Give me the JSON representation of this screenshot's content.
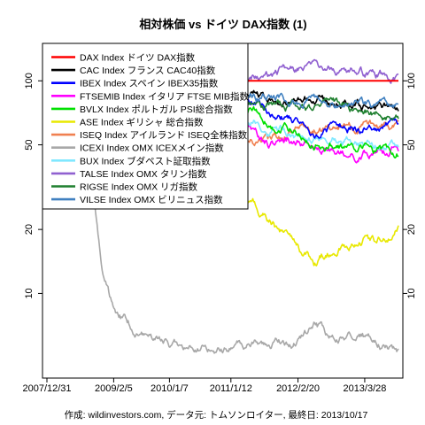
{
  "chart_data": {
    "type": "line",
    "title": "相対株価 vs ドイツ DAX指数 (1)",
    "caption": "作成: wildinvestors.com, データ元: トムソンロイター, 最終日: 2013/10/17",
    "xlabel": "",
    "ylabel": "",
    "y_scale": "log",
    "ylim": [
      4,
      150
    ],
    "y_ticks": [
      10,
      20,
      50,
      100
    ],
    "x_ticks": [
      "2007/12/31",
      "2009/2/5",
      "2010/1/7",
      "2011/1/12",
      "2012/2/20",
      "2013/3/28"
    ],
    "x": [
      "2007/12/31",
      "2008/3/1",
      "2008/6/1",
      "2008/9/1",
      "2008/12/1",
      "2009/2/5",
      "2009/6/1",
      "2009/9/1",
      "2010/1/7",
      "2010/6/1",
      "2011/1/12",
      "2011/6/1",
      "2011/9/1",
      "2012/2/20",
      "2012/6/1",
      "2012/9/1",
      "2013/3/28",
      "2013/6/1",
      "2013/10/17"
    ],
    "legend_position": "top-left",
    "grid": false,
    "series": [
      {
        "name": "DAX Index ドイツ DAX指数",
        "color": "#ff0000",
        "values": [
          100,
          100,
          100,
          100,
          100,
          100,
          100,
          100,
          100,
          100,
          100,
          100,
          100,
          100,
          100,
          100,
          100,
          100,
          100
        ]
      },
      {
        "name": "CAC Index フランス CAC40指数",
        "color": "#000000",
        "values": [
          100,
          95,
          92,
          93,
          97,
          93,
          92,
          90,
          88,
          80,
          84,
          86,
          82,
          80,
          84,
          79,
          74,
          75,
          74
        ]
      },
      {
        "name": "IBEX Index スペイン IBEX35指数",
        "color": "#0000ff",
        "values": [
          100,
          97,
          96,
          95,
          103,
          98,
          96,
          94,
          91,
          78,
          80,
          80,
          72,
          66,
          57,
          60,
          60,
          59,
          62
        ]
      },
      {
        "name": "FTSEMIB Index イタリア FTSE MIB指数",
        "color": "#ff00ff",
        "values": [
          100,
          92,
          90,
          87,
          88,
          80,
          76,
          72,
          70,
          60,
          58,
          57,
          51,
          52,
          49,
          45,
          46,
          45,
          48
        ]
      },
      {
        "name": "BVLX Index ポルトガル PSI総合指数",
        "color": "#00e000",
        "values": [
          100,
          96,
          95,
          92,
          103,
          98,
          94,
          92,
          88,
          74,
          73,
          74,
          64,
          57,
          52,
          51,
          48,
          46,
          47
        ]
      },
      {
        "name": "ASE Index ギリシャ 総合指数",
        "color": "#e8e800",
        "values": [
          100,
          94,
          88,
          82,
          80,
          72,
          58,
          50,
          38,
          32,
          28,
          26,
          22,
          16,
          14,
          16,
          18,
          17,
          20
        ]
      },
      {
        "name": "ISEQ Index アイルランド ISEQ全株指数",
        "color": "#f08050",
        "values": [
          100,
          88,
          84,
          78,
          68,
          62,
          55,
          54,
          52,
          50,
          49,
          50,
          53,
          57,
          60,
          60,
          61,
          60,
          62
        ]
      },
      {
        "name": "ICEXI Index OMX ICEXメイン指数",
        "color": "#a8a8a8",
        "values": [
          100,
          85,
          72,
          55,
          12,
          8.5,
          7,
          6.3,
          5.9,
          5.6,
          5.6,
          5.9,
          6.1,
          6.0,
          7.0,
          6.3,
          6.2,
          5.9,
          5.4
        ]
      },
      {
        "name": "BUX Index ブダペスト証取指数",
        "color": "#80e8ff",
        "values": [
          100,
          95,
          90,
          88,
          82,
          78,
          80,
          82,
          80,
          74,
          70,
          66,
          60,
          56,
          53,
          56,
          52,
          50,
          48
        ]
      },
      {
        "name": "TALSE Index OMX タリン指数",
        "color": "#9060d0",
        "values": [
          100,
          100,
          104,
          104,
          102,
          100,
          96,
          100,
          108,
          104,
          100,
          108,
          110,
          112,
          112,
          115,
          110,
          106,
          104
        ]
      },
      {
        "name": "RIGSE Index OMX リガ指数",
        "color": "#208030",
        "values": [
          100,
          97,
          96,
          94,
          97,
          92,
          90,
          86,
          88,
          80,
          78,
          76,
          78,
          75,
          74,
          77,
          74,
          72,
          70
        ]
      },
      {
        "name": "VILSE Index OMX ビリニュス指数",
        "color": "#4080c0",
        "values": [
          100,
          104,
          100,
          98,
          102,
          96,
          94,
          92,
          96,
          86,
          86,
          84,
          82,
          83,
          82,
          80,
          78,
          76,
          77
        ]
      }
    ]
  }
}
